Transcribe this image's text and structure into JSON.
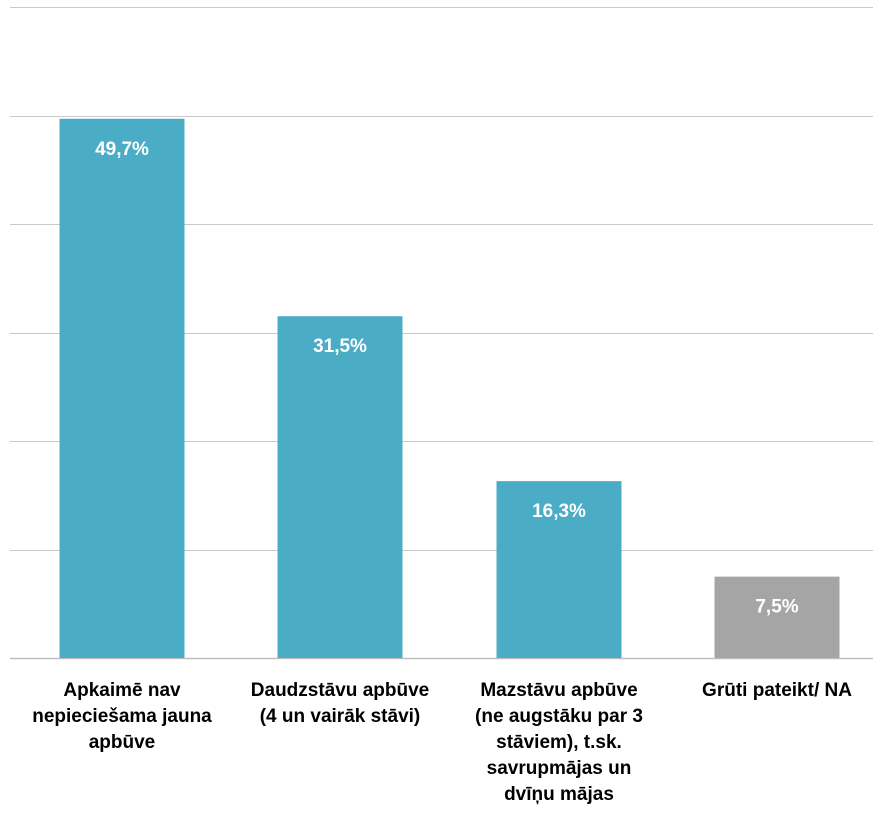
{
  "chart_data": {
    "type": "bar",
    "categories": [
      "Apkaimē nav nepieciešama jauna apbūve",
      "Daudzstāvu apbūve (4 un vairāk stāvi)",
      "Mazstāvu apbūve (ne augstāku par 3 stāviem), t.sk. savrupmājas un dvīņu mājas",
      "Grūti pateikt/ NA"
    ],
    "category_lines": [
      [
        "Apkaimē nav",
        "nepieciešama jauna",
        "apbūve"
      ],
      [
        "Daudzstāvu apbūve",
        "(4 un vairāk stāvi)"
      ],
      [
        "Mazstāvu apbūve",
        "(ne augstāku par 3",
        "stāviem), t.sk.",
        "savrupmājas un",
        "dvīņu mājas"
      ],
      [
        "Grūti pateikt/ NA"
      ]
    ],
    "values": [
      49.7,
      31.5,
      16.3,
      7.5
    ],
    "data_labels": [
      "49,7%",
      "31,5%",
      "16,3%",
      "7,5%"
    ],
    "bar_colors": [
      "#4BACC6",
      "#4BACC6",
      "#4BACC6",
      "#A5A5A5"
    ],
    "title": "",
    "xlabel": "",
    "ylabel": "",
    "ylim": [
      0,
      60
    ],
    "gridline_step": 10,
    "grid": true,
    "legend": "none"
  }
}
